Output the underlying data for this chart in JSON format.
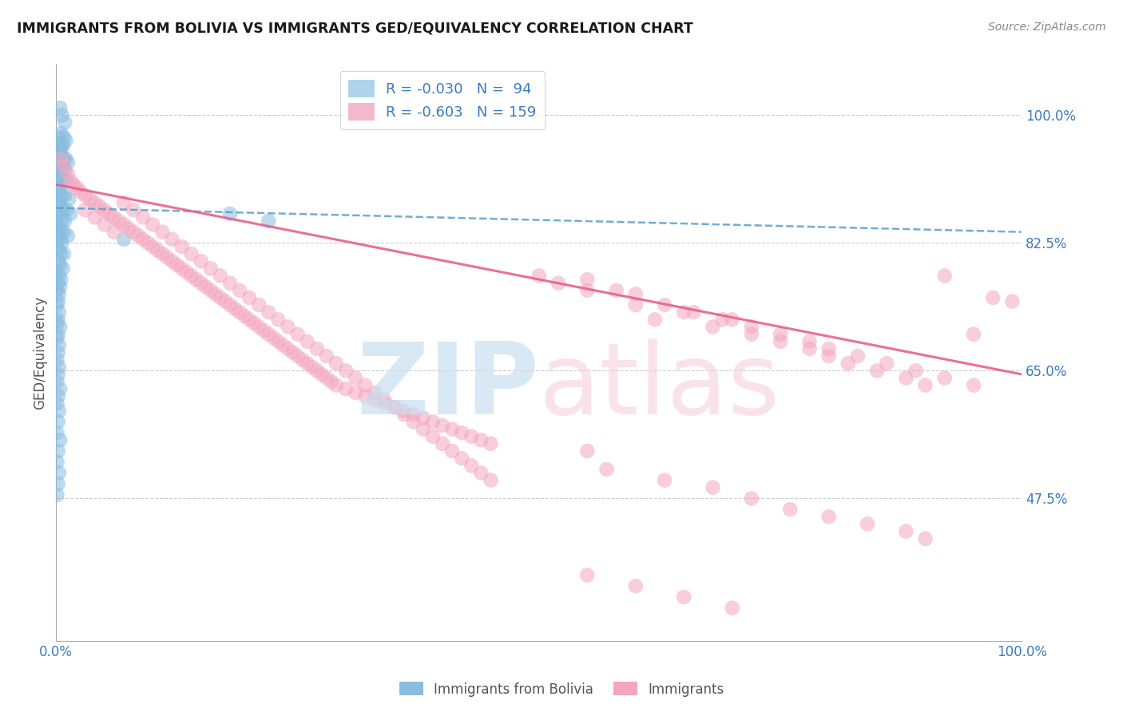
{
  "title": "IMMIGRANTS FROM BOLIVIA VS IMMIGRANTS GED/EQUIVALENCY CORRELATION CHART",
  "source": "Source: ZipAtlas.com",
  "ylabel": "GED/Equivalency",
  "x_tick_labels": [
    "0.0%",
    "100.0%"
  ],
  "y_tick_labels": [
    "47.5%",
    "65.0%",
    "82.5%",
    "100.0%"
  ],
  "y_tick_values": [
    0.475,
    0.65,
    0.825,
    1.0
  ],
  "xlim": [
    0.0,
    1.0
  ],
  "ylim": [
    0.28,
    1.07
  ],
  "legend_label_blue": "Immigrants from Bolivia",
  "legend_label_pink": "Immigrants",
  "R_blue": -0.03,
  "N_blue": 94,
  "R_pink": -0.603,
  "N_pink": 159,
  "blue_scatter_color": "#89bde0",
  "pink_scatter_color": "#f4a6be",
  "blue_line_color": "#5b9ec9",
  "pink_line_color": "#e8608a",
  "background_color": "#ffffff",
  "blue_trend_x": [
    0.0,
    1.0
  ],
  "blue_trend_y": [
    0.873,
    0.84
  ],
  "pink_trend_x": [
    0.0,
    1.0
  ],
  "pink_trend_y": [
    0.905,
    0.645
  ],
  "blue_dots": [
    [
      0.004,
      1.01
    ],
    [
      0.006,
      1.0
    ],
    [
      0.009,
      0.99
    ],
    [
      0.005,
      0.975
    ],
    [
      0.008,
      0.97
    ],
    [
      0.003,
      0.97
    ],
    [
      0.007,
      0.96
    ],
    [
      0.01,
      0.965
    ],
    [
      0.004,
      0.955
    ],
    [
      0.006,
      0.955
    ],
    [
      0.002,
      0.96
    ],
    [
      0.003,
      0.95
    ],
    [
      0.005,
      0.945
    ],
    [
      0.008,
      0.94
    ],
    [
      0.01,
      0.94
    ],
    [
      0.012,
      0.935
    ],
    [
      0.002,
      0.935
    ],
    [
      0.004,
      0.93
    ],
    [
      0.006,
      0.925
    ],
    [
      0.009,
      0.925
    ],
    [
      0.003,
      0.92
    ],
    [
      0.005,
      0.915
    ],
    [
      0.007,
      0.91
    ],
    [
      0.011,
      0.91
    ],
    [
      0.001,
      0.91
    ],
    [
      0.002,
      0.9
    ],
    [
      0.004,
      0.895
    ],
    [
      0.006,
      0.89
    ],
    [
      0.009,
      0.89
    ],
    [
      0.013,
      0.885
    ],
    [
      0.001,
      0.88
    ],
    [
      0.003,
      0.88
    ],
    [
      0.005,
      0.875
    ],
    [
      0.007,
      0.87
    ],
    [
      0.011,
      0.87
    ],
    [
      0.015,
      0.865
    ],
    [
      0.002,
      0.865
    ],
    [
      0.004,
      0.86
    ],
    [
      0.006,
      0.855
    ],
    [
      0.009,
      0.855
    ],
    [
      0.001,
      0.85
    ],
    [
      0.003,
      0.845
    ],
    [
      0.005,
      0.84
    ],
    [
      0.008,
      0.84
    ],
    [
      0.012,
      0.835
    ],
    [
      0.002,
      0.835
    ],
    [
      0.004,
      0.83
    ],
    [
      0.006,
      0.825
    ],
    [
      0.001,
      0.82
    ],
    [
      0.003,
      0.815
    ],
    [
      0.005,
      0.81
    ],
    [
      0.008,
      0.81
    ],
    [
      0.002,
      0.8
    ],
    [
      0.004,
      0.795
    ],
    [
      0.007,
      0.79
    ],
    [
      0.001,
      0.785
    ],
    [
      0.003,
      0.78
    ],
    [
      0.005,
      0.775
    ],
    [
      0.002,
      0.77
    ],
    [
      0.004,
      0.765
    ],
    [
      0.001,
      0.76
    ],
    [
      0.003,
      0.755
    ],
    [
      0.002,
      0.745
    ],
    [
      0.001,
      0.74
    ],
    [
      0.003,
      0.73
    ],
    [
      0.002,
      0.72
    ],
    [
      0.001,
      0.715
    ],
    [
      0.004,
      0.71
    ],
    [
      0.002,
      0.7
    ],
    [
      0.001,
      0.695
    ],
    [
      0.003,
      0.685
    ],
    [
      0.002,
      0.675
    ],
    [
      0.001,
      0.665
    ],
    [
      0.003,
      0.655
    ],
    [
      0.002,
      0.645
    ],
    [
      0.001,
      0.635
    ],
    [
      0.004,
      0.625
    ],
    [
      0.002,
      0.615
    ],
    [
      0.001,
      0.605
    ],
    [
      0.003,
      0.595
    ],
    [
      0.002,
      0.58
    ],
    [
      0.001,
      0.565
    ],
    [
      0.004,
      0.555
    ],
    [
      0.002,
      0.54
    ],
    [
      0.001,
      0.525
    ],
    [
      0.003,
      0.51
    ],
    [
      0.002,
      0.495
    ],
    [
      0.001,
      0.48
    ],
    [
      0.18,
      0.865
    ],
    [
      0.22,
      0.855
    ],
    [
      0.07,
      0.83
    ]
  ],
  "pink_dots": [
    [
      0.005,
      0.94
    ],
    [
      0.008,
      0.93
    ],
    [
      0.012,
      0.92
    ],
    [
      0.015,
      0.91
    ],
    [
      0.018,
      0.905
    ],
    [
      0.022,
      0.9
    ],
    [
      0.025,
      0.895
    ],
    [
      0.03,
      0.89
    ],
    [
      0.035,
      0.885
    ],
    [
      0.04,
      0.88
    ],
    [
      0.045,
      0.875
    ],
    [
      0.05,
      0.87
    ],
    [
      0.055,
      0.865
    ],
    [
      0.06,
      0.86
    ],
    [
      0.065,
      0.855
    ],
    [
      0.07,
      0.85
    ],
    [
      0.075,
      0.845
    ],
    [
      0.08,
      0.84
    ],
    [
      0.085,
      0.835
    ],
    [
      0.09,
      0.83
    ],
    [
      0.095,
      0.825
    ],
    [
      0.1,
      0.82
    ],
    [
      0.105,
      0.815
    ],
    [
      0.11,
      0.81
    ],
    [
      0.115,
      0.805
    ],
    [
      0.12,
      0.8
    ],
    [
      0.125,
      0.795
    ],
    [
      0.13,
      0.79
    ],
    [
      0.135,
      0.785
    ],
    [
      0.14,
      0.78
    ],
    [
      0.145,
      0.775
    ],
    [
      0.15,
      0.77
    ],
    [
      0.155,
      0.765
    ],
    [
      0.16,
      0.76
    ],
    [
      0.165,
      0.755
    ],
    [
      0.17,
      0.75
    ],
    [
      0.175,
      0.745
    ],
    [
      0.18,
      0.74
    ],
    [
      0.185,
      0.735
    ],
    [
      0.19,
      0.73
    ],
    [
      0.195,
      0.725
    ],
    [
      0.2,
      0.72
    ],
    [
      0.205,
      0.715
    ],
    [
      0.21,
      0.71
    ],
    [
      0.215,
      0.705
    ],
    [
      0.22,
      0.7
    ],
    [
      0.225,
      0.695
    ],
    [
      0.23,
      0.69
    ],
    [
      0.235,
      0.685
    ],
    [
      0.24,
      0.68
    ],
    [
      0.245,
      0.675
    ],
    [
      0.25,
      0.67
    ],
    [
      0.255,
      0.665
    ],
    [
      0.26,
      0.66
    ],
    [
      0.265,
      0.655
    ],
    [
      0.27,
      0.65
    ],
    [
      0.275,
      0.645
    ],
    [
      0.28,
      0.64
    ],
    [
      0.285,
      0.635
    ],
    [
      0.29,
      0.63
    ],
    [
      0.3,
      0.625
    ],
    [
      0.31,
      0.62
    ],
    [
      0.32,
      0.615
    ],
    [
      0.33,
      0.61
    ],
    [
      0.34,
      0.605
    ],
    [
      0.35,
      0.6
    ],
    [
      0.36,
      0.595
    ],
    [
      0.37,
      0.59
    ],
    [
      0.38,
      0.585
    ],
    [
      0.39,
      0.58
    ],
    [
      0.4,
      0.575
    ],
    [
      0.41,
      0.57
    ],
    [
      0.42,
      0.565
    ],
    [
      0.43,
      0.56
    ],
    [
      0.44,
      0.555
    ],
    [
      0.45,
      0.55
    ],
    [
      0.03,
      0.87
    ],
    [
      0.04,
      0.86
    ],
    [
      0.05,
      0.85
    ],
    [
      0.06,
      0.84
    ],
    [
      0.07,
      0.88
    ],
    [
      0.08,
      0.87
    ],
    [
      0.09,
      0.86
    ],
    [
      0.1,
      0.85
    ],
    [
      0.11,
      0.84
    ],
    [
      0.12,
      0.83
    ],
    [
      0.13,
      0.82
    ],
    [
      0.14,
      0.81
    ],
    [
      0.15,
      0.8
    ],
    [
      0.16,
      0.79
    ],
    [
      0.17,
      0.78
    ],
    [
      0.18,
      0.77
    ],
    [
      0.19,
      0.76
    ],
    [
      0.2,
      0.75
    ],
    [
      0.21,
      0.74
    ],
    [
      0.22,
      0.73
    ],
    [
      0.23,
      0.72
    ],
    [
      0.24,
      0.71
    ],
    [
      0.25,
      0.7
    ],
    [
      0.26,
      0.69
    ],
    [
      0.27,
      0.68
    ],
    [
      0.28,
      0.67
    ],
    [
      0.29,
      0.66
    ],
    [
      0.3,
      0.65
    ],
    [
      0.31,
      0.64
    ],
    [
      0.32,
      0.63
    ],
    [
      0.33,
      0.62
    ],
    [
      0.34,
      0.61
    ],
    [
      0.35,
      0.6
    ],
    [
      0.36,
      0.59
    ],
    [
      0.37,
      0.58
    ],
    [
      0.38,
      0.57
    ],
    [
      0.39,
      0.56
    ],
    [
      0.4,
      0.55
    ],
    [
      0.41,
      0.54
    ],
    [
      0.42,
      0.53
    ],
    [
      0.43,
      0.52
    ],
    [
      0.44,
      0.51
    ],
    [
      0.45,
      0.5
    ],
    [
      0.55,
      0.76
    ],
    [
      0.6,
      0.74
    ],
    [
      0.62,
      0.72
    ],
    [
      0.65,
      0.73
    ],
    [
      0.68,
      0.71
    ],
    [
      0.7,
      0.72
    ],
    [
      0.72,
      0.7
    ],
    [
      0.75,
      0.69
    ],
    [
      0.78,
      0.68
    ],
    [
      0.8,
      0.67
    ],
    [
      0.82,
      0.66
    ],
    [
      0.85,
      0.65
    ],
    [
      0.88,
      0.64
    ],
    [
      0.9,
      0.63
    ],
    [
      0.92,
      0.78
    ],
    [
      0.95,
      0.7
    ],
    [
      0.97,
      0.75
    ],
    [
      0.99,
      0.745
    ],
    [
      0.5,
      0.78
    ],
    [
      0.52,
      0.77
    ],
    [
      0.55,
      0.775
    ],
    [
      0.58,
      0.76
    ],
    [
      0.6,
      0.755
    ],
    [
      0.63,
      0.74
    ],
    [
      0.66,
      0.73
    ],
    [
      0.69,
      0.72
    ],
    [
      0.72,
      0.71
    ],
    [
      0.75,
      0.7
    ],
    [
      0.78,
      0.69
    ],
    [
      0.8,
      0.68
    ],
    [
      0.83,
      0.67
    ],
    [
      0.86,
      0.66
    ],
    [
      0.89,
      0.65
    ],
    [
      0.92,
      0.64
    ],
    [
      0.95,
      0.63
    ],
    [
      0.55,
      0.54
    ],
    [
      0.57,
      0.515
    ],
    [
      0.63,
      0.5
    ],
    [
      0.68,
      0.49
    ],
    [
      0.72,
      0.475
    ],
    [
      0.76,
      0.46
    ],
    [
      0.8,
      0.45
    ],
    [
      0.84,
      0.44
    ],
    [
      0.88,
      0.43
    ],
    [
      0.9,
      0.42
    ],
    [
      0.55,
      0.37
    ],
    [
      0.6,
      0.355
    ],
    [
      0.65,
      0.34
    ],
    [
      0.7,
      0.325
    ]
  ]
}
